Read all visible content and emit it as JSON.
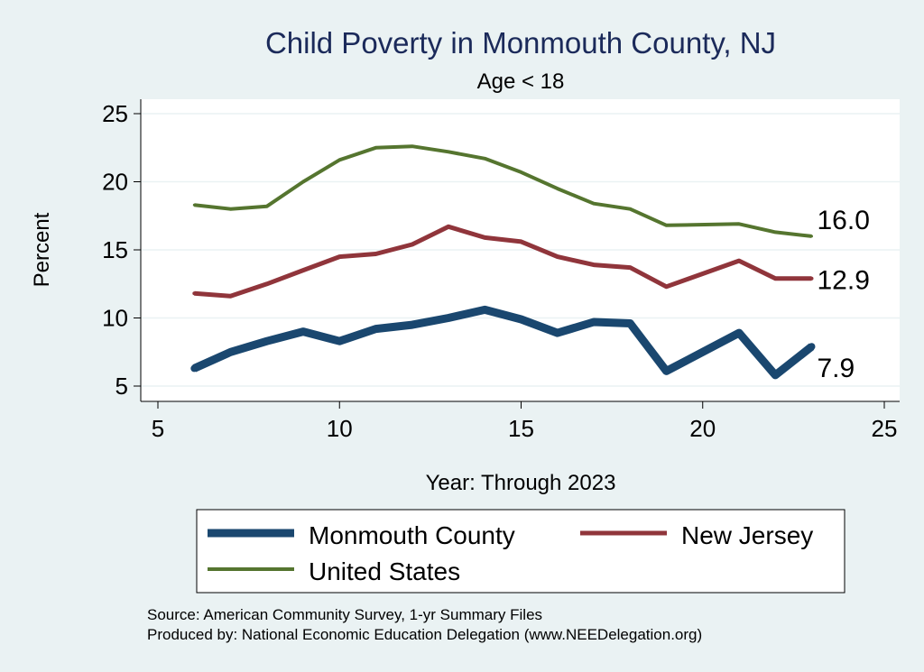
{
  "chart_data": {
    "type": "line",
    "title": "Child Poverty in Monmouth County, NJ",
    "subtitle": "Age < 18",
    "xlabel": "Year: Through 2023",
    "ylabel": "Percent",
    "xlim": [
      5,
      25
    ],
    "ylim": [
      4.5,
      26
    ],
    "xticks": [
      5,
      10,
      15,
      20,
      25
    ],
    "yticks": [
      5,
      10,
      15,
      20,
      25
    ],
    "grid": true,
    "legend_position": "bottom",
    "series": [
      {
        "name": "Monmouth County",
        "color": "#1a476f",
        "x": [
          6,
          7,
          8,
          9,
          10,
          11,
          12,
          13,
          14,
          15,
          16,
          17,
          18,
          19,
          21,
          22,
          23
        ],
        "values": [
          6.3,
          7.5,
          8.3,
          9.0,
          8.3,
          9.2,
          9.5,
          10.0,
          10.6,
          9.9,
          8.9,
          9.7,
          9.6,
          6.1,
          8.9,
          5.8,
          7.9
        ],
        "end_label": "7.9"
      },
      {
        "name": "New Jersey",
        "color": "#90353b",
        "x": [
          6,
          7,
          8,
          9,
          10,
          11,
          12,
          13,
          14,
          15,
          16,
          17,
          18,
          19,
          21,
          22,
          23
        ],
        "values": [
          11.8,
          11.6,
          12.5,
          13.5,
          14.5,
          14.7,
          15.4,
          16.7,
          15.9,
          15.6,
          14.5,
          13.9,
          13.7,
          12.3,
          14.2,
          12.9,
          12.9
        ],
        "end_label": "12.9"
      },
      {
        "name": "United States",
        "color": "#55752f",
        "x": [
          6,
          7,
          8,
          9,
          10,
          11,
          12,
          13,
          14,
          15,
          16,
          17,
          18,
          19,
          21,
          22,
          23
        ],
        "values": [
          18.3,
          18.0,
          18.2,
          20.0,
          21.6,
          22.5,
          22.6,
          22.2,
          21.7,
          20.7,
          19.5,
          18.4,
          18.0,
          16.8,
          16.9,
          16.3,
          16.0
        ],
        "end_label": "16.0"
      }
    ]
  },
  "notes": {
    "source": "Source: American Community Survey, 1-yr Summary Files",
    "produced_by": "Produced by: National Economic Education Delegation (www.NEEDelegation.org)"
  }
}
